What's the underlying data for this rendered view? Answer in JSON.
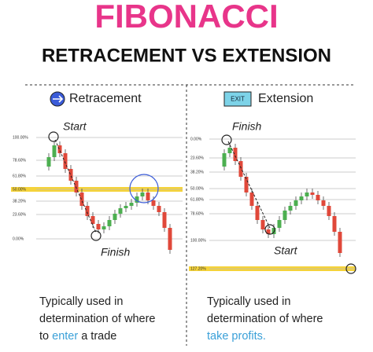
{
  "header": {
    "title": "FIBONACCI",
    "subtitle": "RETRACEMENT VS EXTENSION"
  },
  "panels": [
    {
      "label": "Retracement",
      "levels": [
        "100.00%",
        "78.60%",
        "61.80%",
        "50.00%",
        "38.20%",
        "23.60%",
        "0.00%"
      ],
      "start": "Start",
      "finish": "Finish",
      "caption": {
        "line1": "Typically used in",
        "line2": "determination of where",
        "before": "to",
        "highlight": "enter",
        "after": "a trade"
      }
    },
    {
      "icon": "EXIT",
      "label": "Extension",
      "levels": [
        "0.00%",
        "23.60%",
        "38.20%",
        "50.00%",
        "61.80%",
        "78.60%",
        "100.00%",
        "127.20%"
      ],
      "start": "Start",
      "finish": "Finish",
      "caption": {
        "line1": "Typically used in",
        "line2": "determination of where",
        "highlight": "take profits."
      }
    }
  ]
}
